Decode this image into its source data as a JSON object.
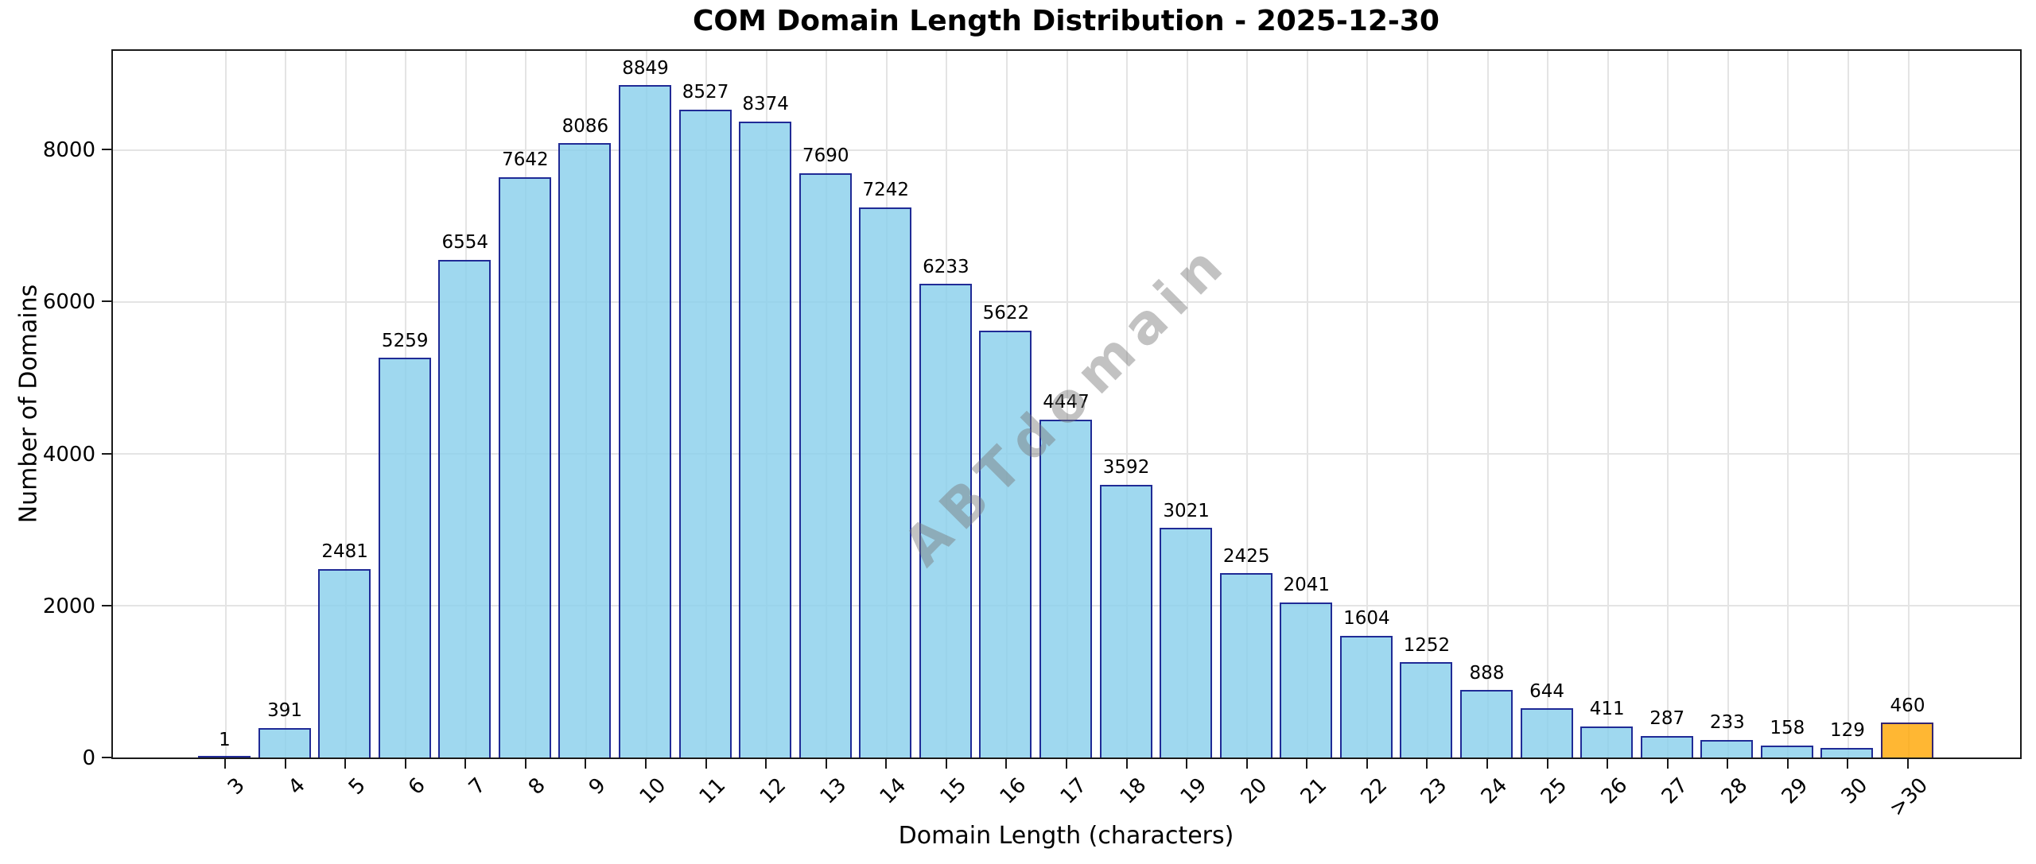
{
  "chart_data": {
    "type": "bar",
    "title": "COM Domain Length Distribution - 2025-12-30",
    "xlabel": "Domain Length (characters)",
    "ylabel": "Number of Domains",
    "watermark": "ABTdomain",
    "categories": [
      "3",
      "4",
      "5",
      "6",
      "7",
      "8",
      "9",
      "10",
      "11",
      "12",
      "13",
      "14",
      "15",
      "16",
      "17",
      "18",
      "19",
      "20",
      "21",
      "22",
      "23",
      "24",
      "25",
      "26",
      "27",
      "28",
      "29",
      "30",
      ">30"
    ],
    "values": [
      1,
      391,
      2481,
      5259,
      6554,
      7642,
      8086,
      8849,
      8527,
      8374,
      7690,
      7242,
      6233,
      5622,
      4447,
      3592,
      3021,
      2425,
      2041,
      1604,
      1252,
      888,
      644,
      411,
      287,
      233,
      158,
      129,
      460
    ],
    "bar_labels_shown": true,
    "ylim": [
      0,
      9300
    ],
    "yticks": [
      0,
      2000,
      4000,
      6000,
      8000
    ],
    "grid": true,
    "legend": "none",
    "colors": {
      "bar_fill": "#87CEEB",
      "bar_edge": "#000080",
      "highlight_fill": "#FFA500",
      "bar_alpha": "0.8",
      "grid_color": "#e4e4e4",
      "spine_color": "#1a1a1a",
      "text_color": "#000000",
      "watermark_color": "#787878"
    },
    "highlight_category": ">30"
  }
}
